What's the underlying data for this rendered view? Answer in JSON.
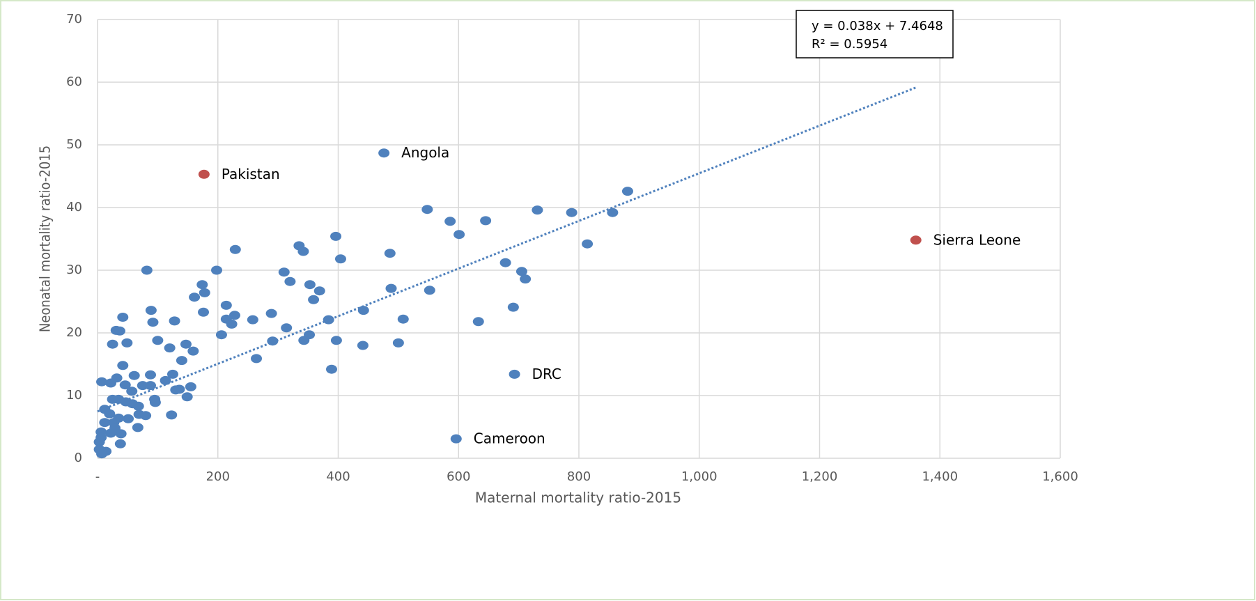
{
  "chart_data": {
    "type": "scatter",
    "x_label": "Maternal mortality ratio-2015",
    "y_label": "Neonatal mortality ratio-2015",
    "xlim": [
      0,
      1600
    ],
    "ylim": [
      0,
      70
    ],
    "xticks": [
      {
        "value": 0,
        "label": "-"
      },
      200,
      400,
      600,
      800,
      {
        "value": 1000,
        "label": "1,000"
      },
      {
        "value": 1200,
        "label": "1,200"
      },
      {
        "value": 1400,
        "label": "1,400"
      },
      {
        "value": 1600,
        "label": "1,600"
      }
    ],
    "yticks": [
      0,
      10,
      20,
      30,
      40,
      50,
      60,
      70
    ],
    "grid": true,
    "series": [
      {
        "color": "#4f81bd",
        "x": [
          476,
          693,
          596,
          548,
          586,
          645,
          601,
          731,
          788,
          856,
          881,
          814,
          396,
          335,
          342,
          229,
          486,
          404,
          310,
          320,
          198,
          82,
          678,
          705,
          711,
          353,
          369,
          359,
          488,
          552,
          174,
          178,
          161,
          214,
          691,
          89,
          176,
          289,
          442,
          228,
          214,
          258,
          384,
          508,
          633,
          223,
          128,
          92,
          42,
          31,
          37,
          314,
          206,
          352,
          343,
          397,
          291,
          500,
          441,
          49,
          25,
          100,
          147,
          120,
          159,
          264,
          140,
          42,
          389,
          7,
          22,
          32,
          61,
          88,
          125,
          113,
          46,
          75,
          88,
          155,
          136,
          130,
          57,
          149,
          25,
          35,
          95,
          96,
          47,
          58,
          68,
          12,
          69,
          80,
          123,
          51,
          12,
          27,
          67,
          39,
          38,
          3,
          3,
          14,
          7,
          22,
          29,
          35,
          20,
          6,
          6
        ],
        "y": [
          48.7,
          13.4,
          3.1,
          39.7,
          37.8,
          37.9,
          35.7,
          39.6,
          39.2,
          39.2,
          42.6,
          34.2,
          35.4,
          33.9,
          33,
          33.3,
          32.7,
          31.8,
          29.7,
          28.2,
          30,
          30,
          31.2,
          29.8,
          28.6,
          27.7,
          26.7,
          25.3,
          27.1,
          26.8,
          27.7,
          26.4,
          25.7,
          24.4,
          24.1,
          23.6,
          23.3,
          23.1,
          23.6,
          22.8,
          22.2,
          22.1,
          22.1,
          22.2,
          21.8,
          21.4,
          21.9,
          21.7,
          22.5,
          20.4,
          20.3,
          20.8,
          19.7,
          19.7,
          18.8,
          18.8,
          18.7,
          18.4,
          18,
          18.4,
          18.2,
          18.8,
          18.2,
          17.6,
          17.1,
          15.9,
          15.6,
          14.8,
          14.2,
          12.2,
          12,
          12.8,
          13.2,
          13.3,
          13.4,
          12.4,
          11.7,
          11.6,
          11.6,
          11.4,
          11,
          10.9,
          10.7,
          9.8,
          9.4,
          9.4,
          9.4,
          8.9,
          9,
          8.7,
          8.3,
          7.8,
          7,
          6.8,
          6.9,
          6.3,
          5.7,
          5.7,
          4.9,
          3.9,
          2.3,
          2.6,
          1.4,
          1.1,
          0.7,
          4,
          4.8,
          6.4,
          7.1,
          4.2,
          3.3
        ],
        "labels": [
          "Angola",
          "DRC",
          "Cameroon",
          null,
          null,
          null,
          null,
          null,
          null,
          null,
          null,
          null,
          null,
          null,
          null,
          null,
          null,
          null,
          null,
          null,
          null,
          null,
          null,
          null,
          null,
          null,
          null,
          null,
          null,
          null,
          null,
          null,
          null,
          null,
          null,
          null,
          null,
          null,
          null,
          null,
          null,
          null,
          null,
          null,
          null,
          null,
          null,
          null,
          null,
          null,
          null,
          null,
          null,
          null,
          null,
          null,
          null,
          null,
          null,
          null,
          null,
          null,
          null,
          null,
          null,
          null,
          null,
          null,
          null,
          null,
          null,
          null,
          null,
          null,
          null,
          null,
          null,
          null,
          null,
          null,
          null,
          null,
          null,
          null,
          null,
          null,
          null,
          null,
          null,
          null,
          null,
          null,
          null,
          null,
          null,
          null,
          null,
          null,
          null,
          null,
          null,
          null,
          null,
          null,
          null,
          null,
          null,
          null,
          null,
          null,
          null
        ]
      },
      {
        "color": "#c0504d",
        "x": [
          177,
          1360
        ],
        "y": [
          45.3,
          34.8
        ],
        "labels": [
          "Pakistan",
          "Sierra Leone"
        ]
      }
    ],
    "trendline": {
      "color": "#4f81bd",
      "x": [
        0,
        1360
      ],
      "y": [
        7.4648,
        59.1448
      ],
      "equation": "y = 0.038x + 7.4648",
      "r_squared": "R² = 0.5954"
    }
  }
}
